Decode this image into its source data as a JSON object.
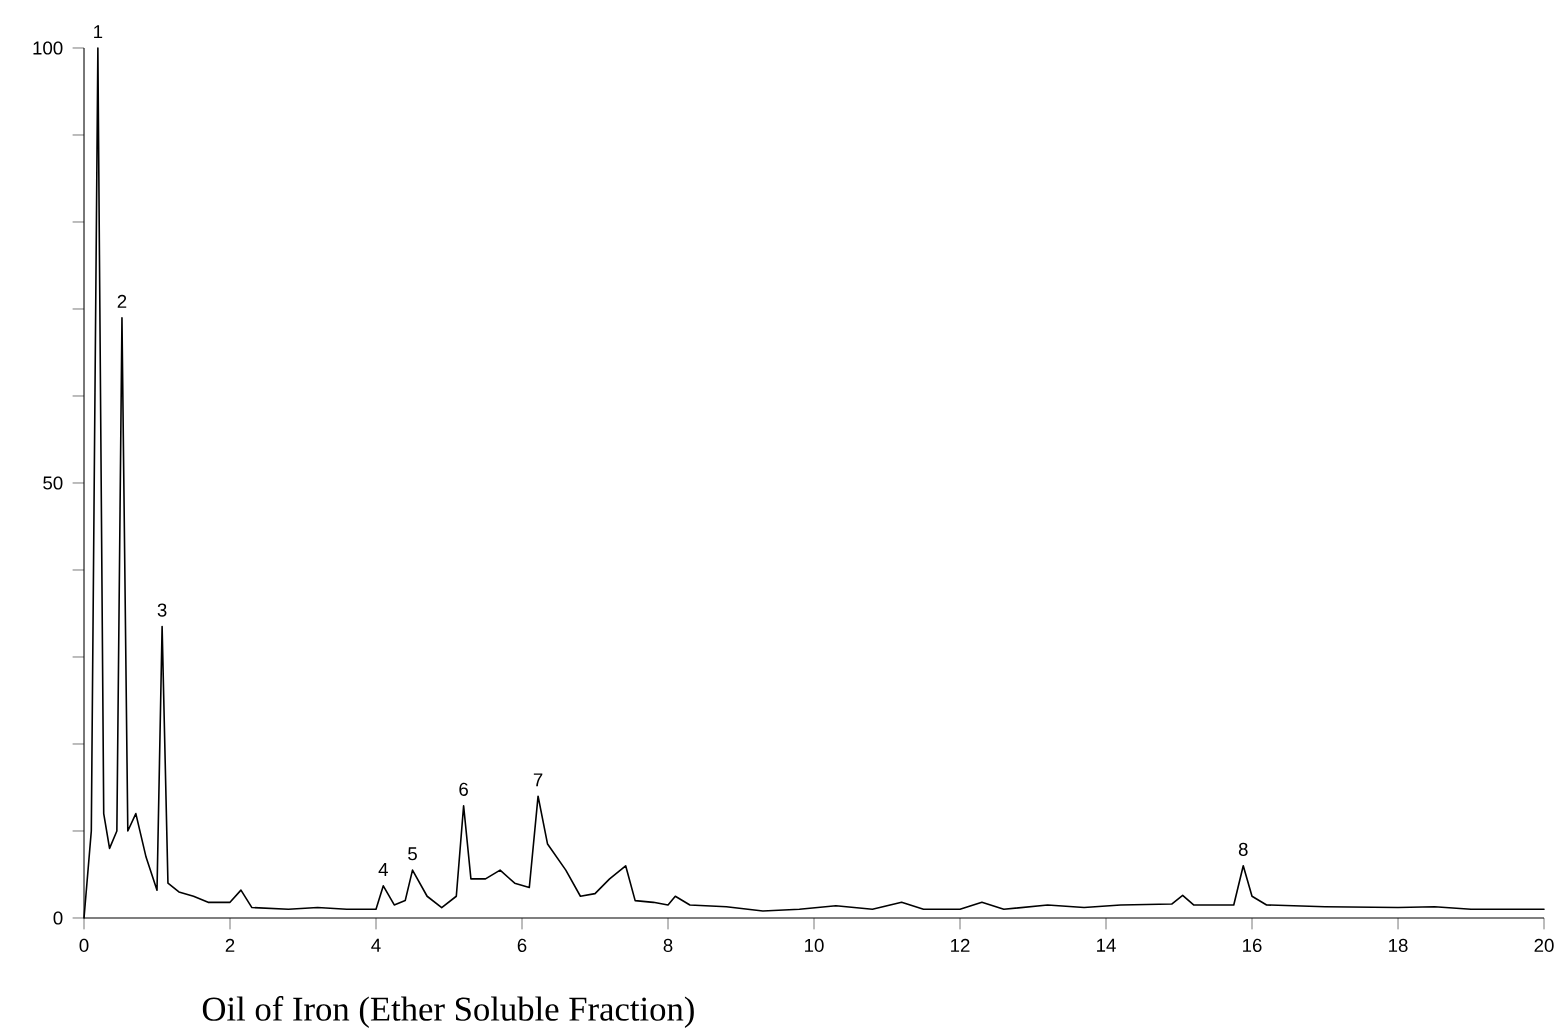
{
  "chart_data": {
    "type": "line",
    "title": "Oil of Iron (Ether Soluble Fraction)",
    "x": [
      0,
      0.1,
      0.19,
      0.27,
      0.35,
      0.45,
      0.52,
      0.6,
      0.71,
      0.85,
      1.0,
      1.07,
      1.15,
      1.3,
      1.5,
      1.7,
      2.0,
      2.15,
      2.3,
      2.8,
      3.2,
      3.6,
      4.0,
      4.1,
      4.25,
      4.4,
      4.5,
      4.7,
      4.9,
      5.1,
      5.2,
      5.3,
      5.5,
      5.7,
      5.9,
      6.1,
      6.22,
      6.35,
      6.6,
      6.8,
      7.0,
      7.2,
      7.42,
      7.55,
      7.8,
      8.0,
      8.1,
      8.3,
      8.8,
      9.3,
      9.8,
      10.3,
      10.8,
      11.2,
      11.5,
      12.0,
      12.3,
      12.6,
      13.2,
      13.7,
      14.2,
      14.9,
      15.05,
      15.2,
      15.75,
      15.88,
      16.0,
      16.2,
      17.0,
      18.0,
      18.5,
      19.0,
      20.0
    ],
    "series": [
      {
        "color": "#000000",
        "values": [
          0,
          10,
          100,
          12,
          8,
          10,
          69,
          10,
          12,
          7,
          3.2,
          33.5,
          4,
          3,
          2.5,
          1.8,
          1.8,
          3.2,
          1.2,
          1.0,
          1.2,
          1.0,
          1.0,
          3.7,
          1.5,
          2,
          5.5,
          2.5,
          1.2,
          2.5,
          12.9,
          4.5,
          4.5,
          5.5,
          4.0,
          3.5,
          14,
          8.5,
          5.5,
          2.5,
          2.8,
          4.5,
          6,
          2,
          1.8,
          1.5,
          2.5,
          1.5,
          1.3,
          0.8,
          1.0,
          1.4,
          1.0,
          1.8,
          1.0,
          1.0,
          1.8,
          1.0,
          1.5,
          1.2,
          1.5,
          1.6,
          2.6,
          1.5,
          1.5,
          6,
          2.5,
          1.5,
          1.3,
          1.2,
          1.3,
          1.0,
          1.0
        ]
      }
    ],
    "xlim": [
      0,
      20
    ],
    "ylim": [
      0,
      100
    ],
    "xticks": [
      0,
      2,
      4,
      6,
      8,
      10,
      12,
      14,
      16,
      18,
      20
    ],
    "yticks": [
      0,
      {
        "value": 10,
        "label": null
      },
      {
        "value": 20,
        "label": null
      },
      {
        "value": 30,
        "label": null
      },
      {
        "value": 40,
        "label": null
      },
      50,
      {
        "value": 60,
        "label": null
      },
      {
        "value": 70,
        "label": null
      },
      {
        "value": 80,
        "label": null
      },
      {
        "value": 90,
        "label": null
      },
      100
    ],
    "annotations": [
      {
        "text": "1",
        "x": 0.19,
        "y": 100
      },
      {
        "text": "2",
        "x": 0.52,
        "y": 69
      },
      {
        "text": "3",
        "x": 1.07,
        "y": 33.5
      },
      {
        "text": "4",
        "x": 4.1,
        "y": 3.7
      },
      {
        "text": "5",
        "x": 4.5,
        "y": 5.5
      },
      {
        "text": "6",
        "x": 5.2,
        "y": 12.9
      },
      {
        "text": "7",
        "x": 6.22,
        "y": 14
      },
      {
        "text": "8",
        "x": 15.88,
        "y": 6
      }
    ],
    "marker": "none",
    "line_style": "solid"
  }
}
